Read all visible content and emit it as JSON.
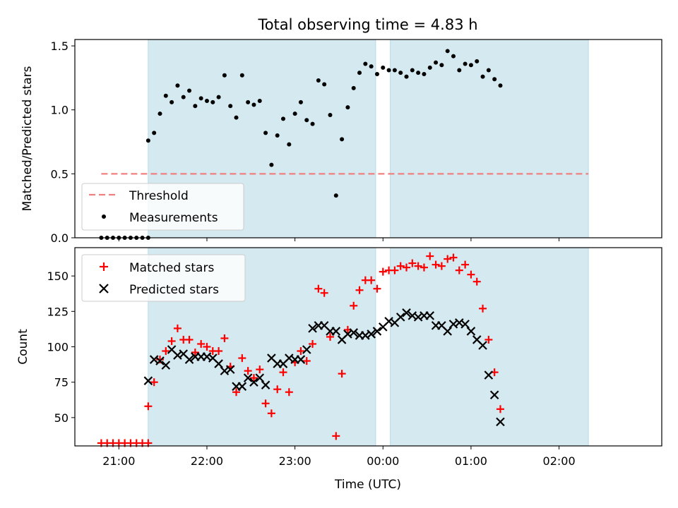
{
  "chart_data": {
    "title": "Total observing time = 4.83 h",
    "xlabel": "Time (UTC)",
    "x_ticks": [
      "21:00",
      "22:00",
      "23:00",
      "00:00",
      "01:00",
      "02:00"
    ],
    "x_tick_times": [
      "21:00",
      "22:00",
      "23:00",
      "00:00",
      "01:00",
      "02:00"
    ],
    "x_range": [
      "20:30",
      "03:10"
    ],
    "shaded_color": "#d4e9f0",
    "shaded_intervals": [
      [
        "21:20",
        "23:55"
      ],
      [
        "00:05",
        "02:20"
      ]
    ],
    "panels": [
      {
        "type": "scatter",
        "ylabel": "Matched/Predicted stars",
        "ylim": [
          0,
          1.55
        ],
        "y_ticks": [
          "0.0",
          "0.5",
          "1.0",
          "1.5"
        ],
        "y_tick_values": [
          0,
          0.5,
          1.0,
          1.5
        ],
        "legend_position": "lower-left",
        "threshold": {
          "name": "Threshold",
          "value": 0.5,
          "x_range": [
            "20:48",
            "02:20"
          ],
          "color": "#f08080",
          "style": "dashed"
        },
        "series": [
          {
            "name": "Measurements",
            "marker": "dot",
            "color": "#000000",
            "points": [
              [
                "20:48",
                0
              ],
              [
                "20:52",
                0
              ],
              [
                "20:56",
                0
              ],
              [
                "21:00",
                0
              ],
              [
                "21:04",
                0
              ],
              [
                "21:08",
                0
              ],
              [
                "21:12",
                0
              ],
              [
                "21:16",
                0
              ],
              [
                "21:20",
                0
              ],
              [
                "21:20",
                0.76
              ],
              [
                "21:24",
                0.82
              ],
              [
                "21:28",
                0.97
              ],
              [
                "21:32",
                1.11
              ],
              [
                "21:36",
                1.06
              ],
              [
                "21:40",
                1.19
              ],
              [
                "21:44",
                1.1
              ],
              [
                "21:48",
                1.15
              ],
              [
                "21:52",
                1.03
              ],
              [
                "21:56",
                1.09
              ],
              [
                "22:00",
                1.07
              ],
              [
                "22:04",
                1.06
              ],
              [
                "22:08",
                1.1
              ],
              [
                "22:12",
                1.27
              ],
              [
                "22:16",
                1.03
              ],
              [
                "22:20",
                0.94
              ],
              [
                "22:24",
                1.27
              ],
              [
                "22:28",
                1.06
              ],
              [
                "22:32",
                1.04
              ],
              [
                "22:36",
                1.07
              ],
              [
                "22:40",
                0.82
              ],
              [
                "22:44",
                0.57
              ],
              [
                "22:48",
                0.8
              ],
              [
                "22:52",
                0.93
              ],
              [
                "22:56",
                0.73
              ],
              [
                "23:00",
                0.97
              ],
              [
                "23:04",
                1.06
              ],
              [
                "23:08",
                0.92
              ],
              [
                "23:12",
                0.89
              ],
              [
                "23:16",
                1.23
              ],
              [
                "23:20",
                1.2
              ],
              [
                "23:24",
                0.96
              ],
              [
                "23:28",
                0.33
              ],
              [
                "23:32",
                0.77
              ],
              [
                "23:36",
                1.02
              ],
              [
                "23:40",
                1.17
              ],
              [
                "23:44",
                1.29
              ],
              [
                "23:48",
                1.36
              ],
              [
                "23:52",
                1.34
              ],
              [
                "23:56",
                1.28
              ],
              [
                "00:00",
                1.33
              ],
              [
                "00:04",
                1.31
              ],
              [
                "00:08",
                1.31
              ],
              [
                "00:12",
                1.29
              ],
              [
                "00:16",
                1.26
              ],
              [
                "00:20",
                1.31
              ],
              [
                "00:24",
                1.29
              ],
              [
                "00:28",
                1.28
              ],
              [
                "00:32",
                1.33
              ],
              [
                "00:36",
                1.37
              ],
              [
                "00:40",
                1.35
              ],
              [
                "00:44",
                1.46
              ],
              [
                "00:48",
                1.42
              ],
              [
                "00:52",
                1.31
              ],
              [
                "00:56",
                1.36
              ],
              [
                "01:00",
                1.35
              ],
              [
                "01:04",
                1.38
              ],
              [
                "01:08",
                1.26
              ],
              [
                "01:12",
                1.31
              ],
              [
                "01:16",
                1.24
              ],
              [
                "01:20",
                1.19
              ]
            ]
          }
        ]
      },
      {
        "type": "scatter",
        "ylabel": "Count",
        "ylim": [
          30,
          170
        ],
        "y_ticks": [
          "50",
          "75",
          "100",
          "125",
          "150"
        ],
        "y_tick_values": [
          50,
          75,
          100,
          125,
          150
        ],
        "legend_position": "upper-left",
        "series": [
          {
            "name": "Matched stars",
            "marker": "plus",
            "color": "#ff0000",
            "points": [
              [
                "20:48",
                32
              ],
              [
                "20:52",
                32
              ],
              [
                "20:56",
                32
              ],
              [
                "21:00",
                32
              ],
              [
                "21:04",
                32
              ],
              [
                "21:08",
                32
              ],
              [
                "21:12",
                32
              ],
              [
                "21:16",
                32
              ],
              [
                "21:20",
                32
              ],
              [
                "21:20",
                58
              ],
              [
                "21:24",
                75
              ],
              [
                "21:28",
                91
              ],
              [
                "21:32",
                97
              ],
              [
                "21:36",
                104
              ],
              [
                "21:40",
                113
              ],
              [
                "21:44",
                105
              ],
              [
                "21:48",
                105
              ],
              [
                "21:52",
                96
              ],
              [
                "21:56",
                102
              ],
              [
                "22:00",
                100
              ],
              [
                "22:04",
                97
              ],
              [
                "22:08",
                97
              ],
              [
                "22:12",
                106
              ],
              [
                "22:16",
                86
              ],
              [
                "22:20",
                68
              ],
              [
                "22:24",
                92
              ],
              [
                "22:28",
                83
              ],
              [
                "22:32",
                78
              ],
              [
                "22:36",
                84
              ],
              [
                "22:40",
                60
              ],
              [
                "22:44",
                53
              ],
              [
                "22:48",
                70
              ],
              [
                "22:52",
                82
              ],
              [
                "22:56",
                68
              ],
              [
                "23:00",
                89
              ],
              [
                "23:04",
                97
              ],
              [
                "23:08",
                90
              ],
              [
                "23:12",
                102
              ],
              [
                "23:16",
                141
              ],
              [
                "23:20",
                138
              ],
              [
                "23:24",
                107
              ],
              [
                "23:28",
                37
              ],
              [
                "23:32",
                81
              ],
              [
                "23:36",
                112
              ],
              [
                "23:40",
                129
              ],
              [
                "23:44",
                140
              ],
              [
                "23:48",
                147
              ],
              [
                "23:52",
                147
              ],
              [
                "23:56",
                141
              ],
              [
                "00:00",
                153
              ],
              [
                "00:04",
                154
              ],
              [
                "00:08",
                154
              ],
              [
                "00:12",
                157
              ],
              [
                "00:16",
                156
              ],
              [
                "00:20",
                159
              ],
              [
                "00:24",
                157
              ],
              [
                "00:28",
                156
              ],
              [
                "00:32",
                164
              ],
              [
                "00:36",
                158
              ],
              [
                "00:40",
                157
              ],
              [
                "00:44",
                162
              ],
              [
                "00:48",
                163
              ],
              [
                "00:52",
                154
              ],
              [
                "00:56",
                158
              ],
              [
                "01:00",
                151
              ],
              [
                "01:04",
                146
              ],
              [
                "01:08",
                127
              ],
              [
                "01:12",
                105
              ],
              [
                "01:16",
                82
              ],
              [
                "01:20",
                56
              ]
            ]
          },
          {
            "name": "Predicted stars",
            "marker": "x",
            "color": "#000000",
            "points": [
              [
                "21:20",
                76
              ],
              [
                "21:24",
                91
              ],
              [
                "21:28",
                90
              ],
              [
                "21:32",
                87
              ],
              [
                "21:36",
                98
              ],
              [
                "21:40",
                94
              ],
              [
                "21:44",
                95
              ],
              [
                "21:48",
                91
              ],
              [
                "21:52",
                93
              ],
              [
                "21:56",
                93
              ],
              [
                "22:00",
                93
              ],
              [
                "22:04",
                92
              ],
              [
                "22:08",
                88
              ],
              [
                "22:12",
                83
              ],
              [
                "22:16",
                84
              ],
              [
                "22:20",
                72
              ],
              [
                "22:24",
                72
              ],
              [
                "22:28",
                78
              ],
              [
                "22:32",
                75
              ],
              [
                "22:36",
                78
              ],
              [
                "22:40",
                73
              ],
              [
                "22:44",
                92
              ],
              [
                "22:48",
                88
              ],
              [
                "22:52",
                88
              ],
              [
                "22:56",
                92
              ],
              [
                "23:00",
                91
              ],
              [
                "23:04",
                91
              ],
              [
                "23:08",
                98
              ],
              [
                "23:12",
                113
              ],
              [
                "23:16",
                115
              ],
              [
                "23:20",
                115
              ],
              [
                "23:24",
                111
              ],
              [
                "23:28",
                111
              ],
              [
                "23:32",
                105
              ],
              [
                "23:36",
                109
              ],
              [
                "23:40",
                110
              ],
              [
                "23:44",
                108
              ],
              [
                "23:48",
                108
              ],
              [
                "23:52",
                109
              ],
              [
                "23:56",
                111
              ],
              [
                "00:00",
                114
              ],
              [
                "00:04",
                118
              ],
              [
                "00:08",
                117
              ],
              [
                "00:12",
                121
              ],
              [
                "00:16",
                124
              ],
              [
                "00:20",
                122
              ],
              [
                "00:24",
                121
              ],
              [
                "00:28",
                122
              ],
              [
                "00:32",
                122
              ],
              [
                "00:36",
                115
              ],
              [
                "00:40",
                115
              ],
              [
                "00:44",
                111
              ],
              [
                "00:48",
                116
              ],
              [
                "00:52",
                117
              ],
              [
                "00:56",
                116
              ],
              [
                "01:00",
                111
              ],
              [
                "01:04",
                105
              ],
              [
                "01:08",
                101
              ],
              [
                "01:12",
                80
              ],
              [
                "01:16",
                66
              ],
              [
                "01:20",
                47
              ]
            ]
          }
        ]
      }
    ]
  }
}
